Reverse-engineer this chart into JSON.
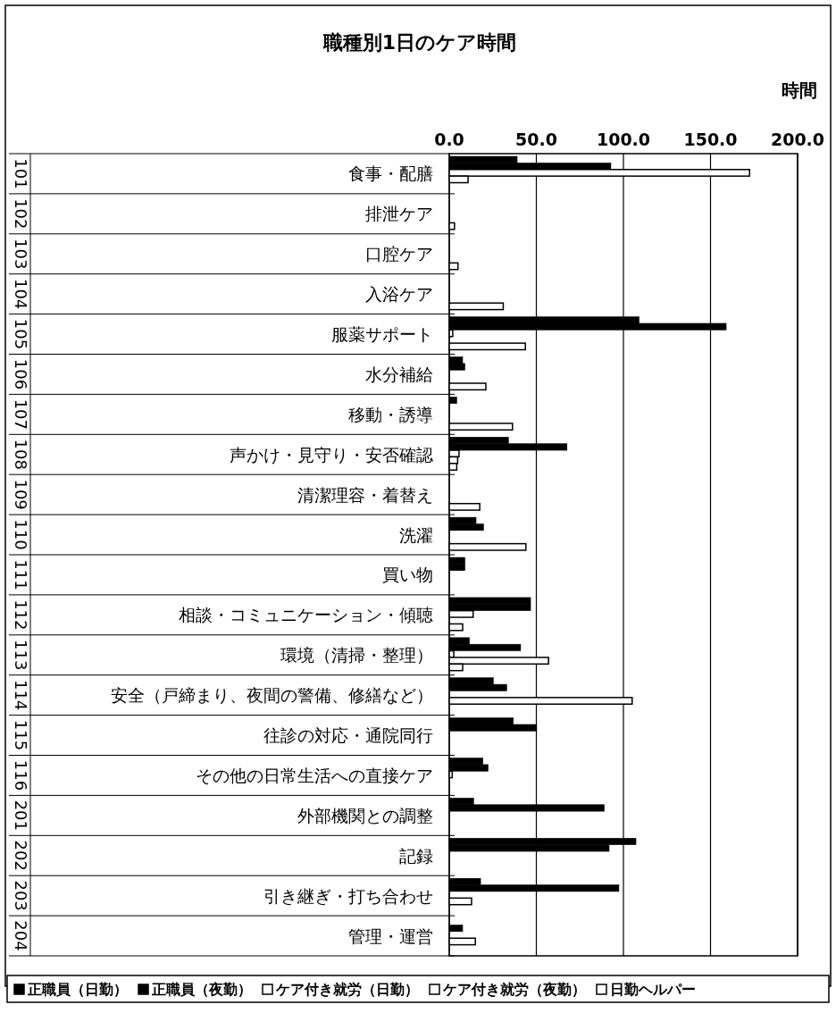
{
  "chart_data": {
    "type": "bar",
    "orientation": "horizontal",
    "title": "職種別1日のケア時間",
    "xlabel": "時間",
    "categories": [
      "食事・配膳",
      "排泄ケア",
      "口腔ケア",
      "入浴ケア",
      "服薬サポート",
      "水分補給",
      "移動・誘導",
      "声かけ・見守り・安否確認",
      "清潔理容・着替え",
      "洗濯",
      "買い物",
      "相談・コミュニケーション・傾聴",
      "環境（清掃・整理）",
      "安全（戸締まり、夜間の警備、修繕など）",
      "往診の対応・通院同行",
      "その他の日常生活への直接ケア",
      "外部機関との調整",
      "記録",
      "引き継ぎ・打ち合わせ",
      "管理・運営"
    ],
    "series": [
      {
        "name": "正職員（日勤）",
        "color": "#000000",
        "values": [
          39,
          0,
          0,
          0,
          109,
          7.7,
          4.3,
          34,
          0,
          15.4,
          9,
          46.7,
          11.6,
          25.3,
          36.8,
          19.3,
          14,
          107.2,
          18,
          0
        ]
      },
      {
        "name": "正職員（夜勤）",
        "color": "#000000",
        "values": [
          92.8,
          0,
          0,
          0,
          159,
          9,
          0,
          67.6,
          0,
          19.7,
          9,
          46.7,
          41,
          33,
          50.2,
          22.3,
          89,
          91.8,
          97.4,
          7.7
        ]
      },
      {
        "name": "ケア付き就労（日勤）",
        "color": "#ffffff",
        "values": [
          172.4,
          0,
          0,
          0,
          2,
          0,
          0,
          5.6,
          0,
          0,
          0,
          13.7,
          2.6,
          0,
          0,
          1.7,
          0,
          0,
          0,
          0
        ]
      },
      {
        "name": "ケア付き就労（夜勤）",
        "color": "#ffffff",
        "values": [
          10.8,
          0,
          0,
          0,
          0,
          0,
          0,
          4.8,
          0,
          0,
          0,
          0,
          57,
          105,
          0,
          0,
          0,
          0,
          12.8,
          15
        ]
      },
      {
        "name": "日勤ヘルパー",
        "color": "#ffffff",
        "values": [
          0,
          3,
          5,
          31,
          43.7,
          21,
          36.3,
          4.3,
          17.5,
          44,
          0,
          7.7,
          7.7,
          0,
          0,
          0,
          0,
          0,
          0,
          0
        ]
      }
    ],
    "xlim": [
      0,
      200
    ],
    "xticks": [
      {
        "value": 0,
        "label": "0.0"
      },
      {
        "value": 50,
        "label": "50.0"
      },
      {
        "value": 100,
        "label": "100.0"
      },
      {
        "value": 150,
        "label": "150.0"
      },
      {
        "value": 200,
        "label": "200.0"
      }
    ],
    "grid": "x",
    "legend": "bottom",
    "annotations": [
      "101",
      "102",
      "103",
      "104",
      "105",
      "106",
      "107",
      "108",
      "109",
      "110",
      "111",
      "112",
      "113",
      "114",
      "115",
      "116",
      "201",
      "202",
      "203",
      "204"
    ]
  }
}
